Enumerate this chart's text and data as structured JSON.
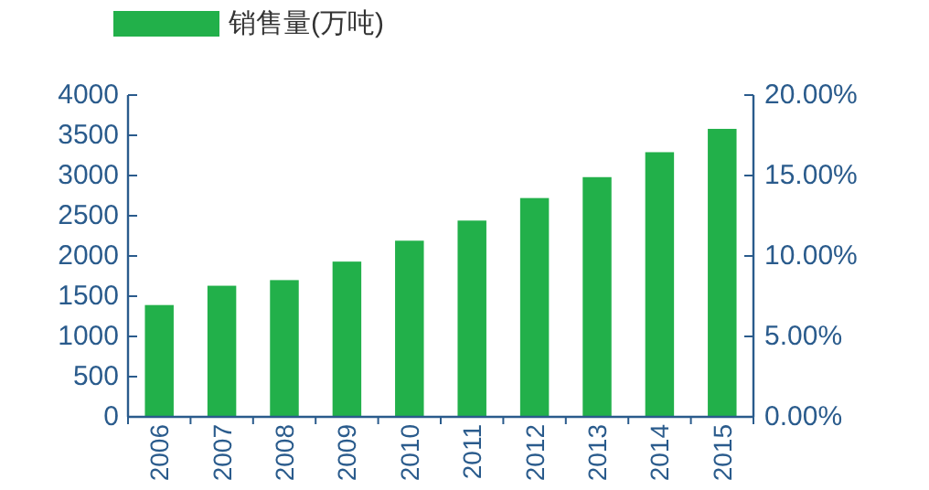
{
  "chart_data": {
    "type": "bar",
    "categories": [
      "2006",
      "2007",
      "2008",
      "2009",
      "2010",
      "2011",
      "2012",
      "2013",
      "2014",
      "2015"
    ],
    "series": [
      {
        "name": "销售量(万吨)",
        "color": "#22b04a",
        "values": [
          1390,
          1630,
          1700,
          1930,
          2190,
          2440,
          2720,
          2980,
          3290,
          3580
        ]
      }
    ],
    "ylim": [
      0,
      4000
    ],
    "yticks": [
      0,
      500,
      1000,
      1500,
      2000,
      2500,
      3000,
      3500,
      4000
    ],
    "y2lim": [
      0,
      20
    ],
    "y2ticks": [
      {
        "value": 0,
        "label": "0.00%"
      },
      {
        "value": 5,
        "label": "5.00%"
      },
      {
        "value": 10,
        "label": "10.00%"
      },
      {
        "value": 15,
        "label": "15.00%"
      },
      {
        "value": 20,
        "label": "20.00%"
      }
    ],
    "legend": "top left",
    "grid": false
  }
}
